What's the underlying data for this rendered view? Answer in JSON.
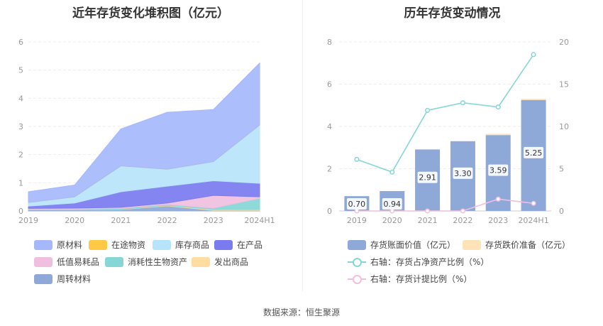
{
  "source": "数据来源：恒生聚源",
  "chart_data": [
    {
      "type": "area",
      "title": "近年存货变化堆积图（亿元）",
      "categories": [
        "2019",
        "2020",
        "2021",
        "2022",
        "2023",
        "2024H1"
      ],
      "ylim": [
        0,
        6
      ],
      "yticks": [
        "0",
        "1",
        "2",
        "3",
        "4",
        "5",
        "6"
      ],
      "stacked": true,
      "series": [
        {
          "name": "周转材料",
          "color": "#8ea8d8",
          "values": [
            0.04,
            0.04,
            0.05,
            0.18,
            0.02,
            0.02
          ]
        },
        {
          "name": "发出商品",
          "color": "#ffdda0",
          "values": [
            0.01,
            0.01,
            0.01,
            0.02,
            0.03,
            0.03
          ]
        },
        {
          "name": "消耗性生物资产",
          "color": "#86d6d6",
          "values": [
            0.02,
            0.02,
            0.03,
            0.03,
            0.05,
            0.4
          ]
        },
        {
          "name": "低值易耗品",
          "color": "#f0bfe0",
          "values": [
            0.02,
            0.03,
            0.04,
            0.05,
            0.45,
            0.05
          ]
        },
        {
          "name": "在产品",
          "color": "#7b7bf0",
          "values": [
            0.08,
            0.18,
            0.55,
            0.6,
            0.52,
            0.48
          ]
        },
        {
          "name": "库存商品",
          "color": "#b8e4fb",
          "values": [
            0.13,
            0.22,
            0.92,
            0.6,
            0.68,
            2.07
          ]
        },
        {
          "name": "在途物资",
          "color": "#ffc845",
          "values": [
            0.0,
            0.0,
            0.0,
            0.0,
            0.0,
            0.0
          ]
        },
        {
          "name": "原材料",
          "color": "#a5b8fb",
          "values": [
            0.38,
            0.42,
            1.31,
            2.02,
            1.85,
            2.2
          ]
        }
      ],
      "legend_order": [
        "原材料",
        "在途物资",
        "库存商品",
        "在产品",
        "低值易耗品",
        "消耗性生物资产",
        "发出商品",
        "周转材料"
      ],
      "legend": "bottom",
      "grid": true
    },
    {
      "type": "bar",
      "title": "历年存货变动情况",
      "categories": [
        "2019",
        "2020",
        "2021",
        "2022",
        "2023",
        "2024H1"
      ],
      "ylim": [
        0,
        8
      ],
      "yticks": [
        "0",
        "2",
        "4",
        "6",
        "8"
      ],
      "y2lim": [
        0,
        20
      ],
      "y2ticks": [
        "0",
        "5",
        "10",
        "15",
        "20"
      ],
      "series": [
        {
          "name": "存货账面价值（亿元）",
          "color": "#8ea8d8",
          "values": [
            0.7,
            0.94,
            2.91,
            3.3,
            3.59,
            5.25
          ],
          "labels": [
            "0.70",
            "0.94",
            "2.91",
            "3.30",
            "3.59",
            "5.25"
          ],
          "axis": "left",
          "kind": "bar"
        },
        {
          "name": "存货跌价准备（亿元）",
          "color": "#ffe3b8",
          "values": [
            0.0,
            0.0,
            0.0,
            0.0,
            0.06,
            0.06
          ],
          "axis": "left",
          "kind": "bar-stack"
        },
        {
          "name": "右轴：存货占净资产比例（%）",
          "color": "#86d6d6",
          "values": [
            6.1,
            4.6,
            11.9,
            12.8,
            12.3,
            18.5
          ],
          "axis": "right",
          "kind": "line"
        },
        {
          "name": "右轴：存货计提比例（%）",
          "color": "#f0bfe0",
          "values": [
            0,
            0,
            0,
            0,
            1.4,
            0.9
          ],
          "axis": "right",
          "kind": "line"
        }
      ],
      "legend": "bottom",
      "grid": true
    }
  ]
}
